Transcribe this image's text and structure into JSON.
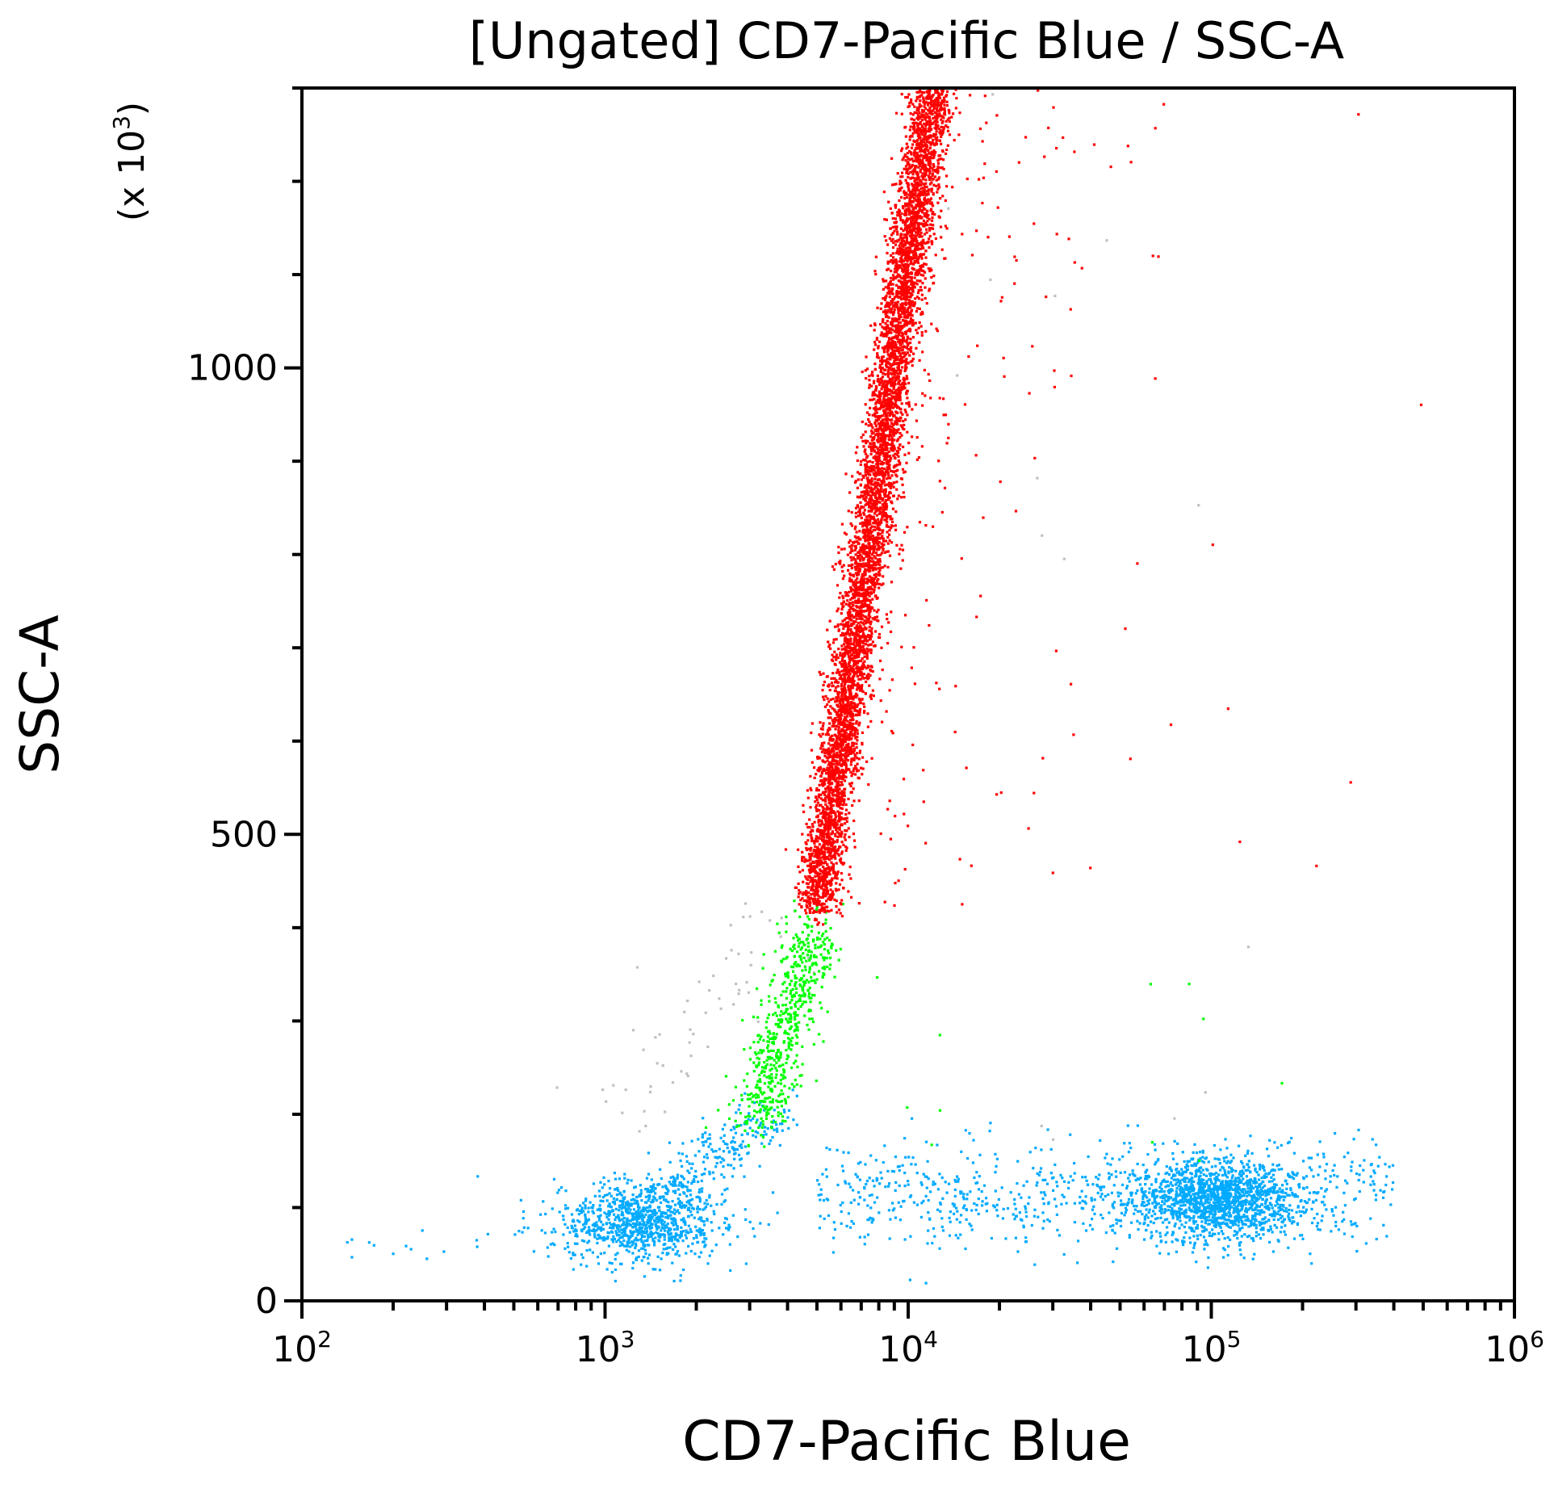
{
  "chart_data": {
    "type": "scatter",
    "title": "[Ungated] CD7-Pacific Blue / SSC-A",
    "xlabel": "CD7-Pacific Blue",
    "ylabel": "SSC-A",
    "y_multiplier_label": "(x 10",
    "y_multiplier_exp": "3",
    "x_scale": "log",
    "xlim": [
      100,
      1000000
    ],
    "ylim": [
      0,
      1300
    ],
    "grid": false,
    "x_ticks": [
      {
        "base": "10",
        "exp": "2",
        "value": 100
      },
      {
        "base": "10",
        "exp": "3",
        "value": 1000
      },
      {
        "base": "10",
        "exp": "4",
        "value": 10000
      },
      {
        "base": "10",
        "exp": "5",
        "value": 100000
      },
      {
        "base": "10",
        "exp": "6",
        "value": 1000000
      }
    ],
    "y_ticks": [
      {
        "label": "0",
        "value": 0
      },
      {
        "label": "500",
        "value": 500
      },
      {
        "label": "1000",
        "value": 1000
      }
    ],
    "populations": [
      {
        "color": "#ff0000",
        "description_points": "diagonal band",
        "x_range": [
          5000,
          12000
        ],
        "y_range": [
          420,
          1300
        ],
        "approx_count": 6000
      },
      {
        "color": "#00ff00",
        "description_points": "cluster",
        "x_center": 4000,
        "y_range": [
          190,
          400
        ],
        "approx_count": 600
      },
      {
        "color": "#00aaff",
        "description_points": "low cluster",
        "x_center": 1300,
        "y_center": 85,
        "approx_count": 1200
      },
      {
        "color": "#00aaff",
        "description_points": "high CD7 cluster",
        "x_center": 100000,
        "y_center": 110,
        "approx_count": 2200
      },
      {
        "color": "#c0c0c0",
        "description_points": "ungated events",
        "approx_count": 60
      }
    ]
  }
}
